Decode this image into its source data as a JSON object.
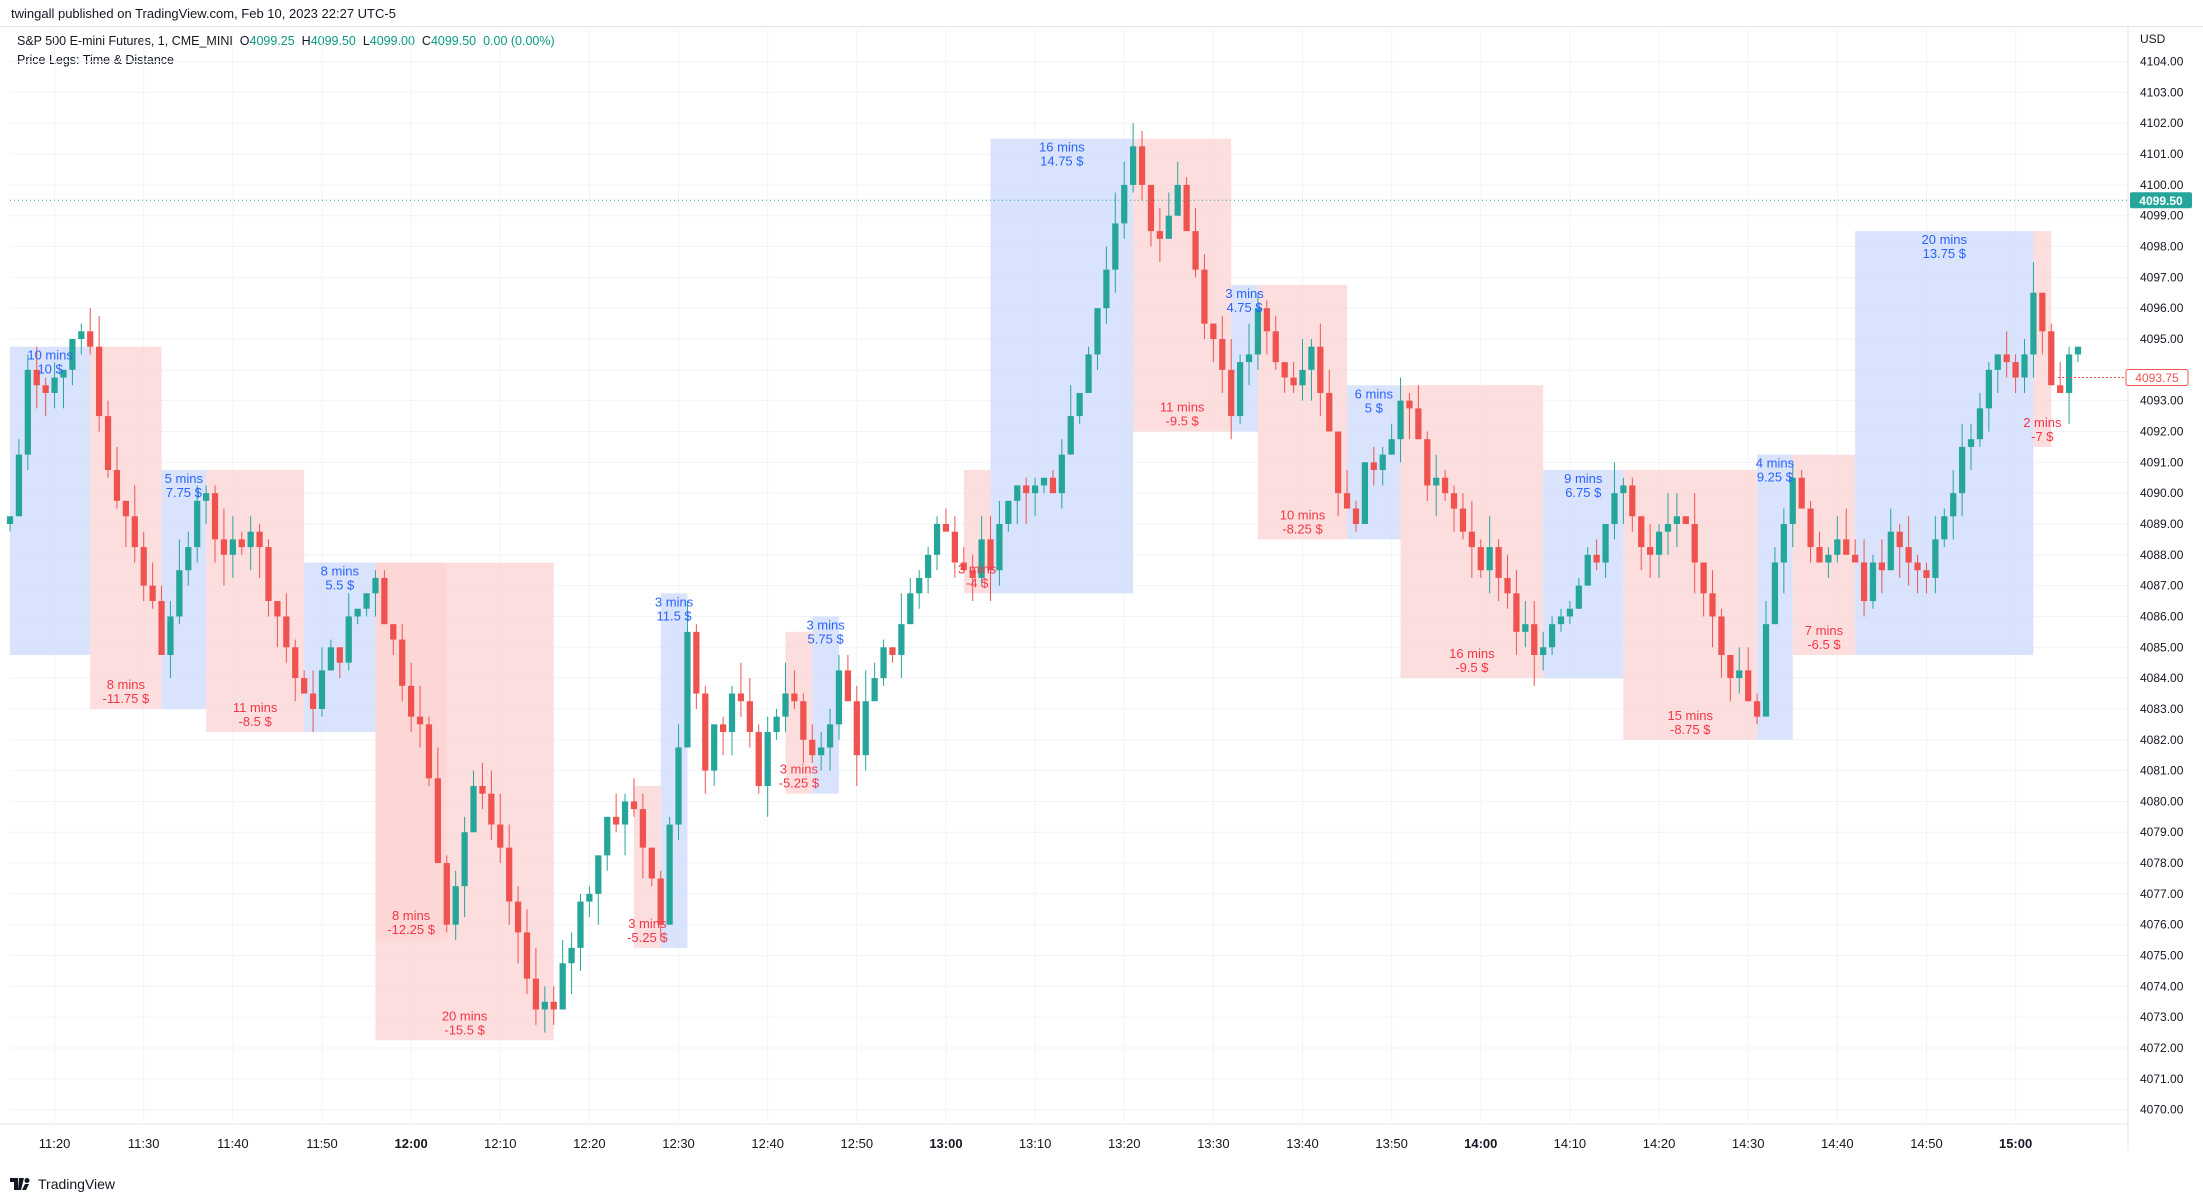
{
  "header": {
    "published": "twingall published on TradingView.com, Feb 10, 2023 22:27 UTC-5"
  },
  "legend": {
    "symbol": "S&P 500 E-mini Futures, 1, CME_MINI",
    "o_label": "O",
    "o_value": "4099.25",
    "h_label": "H",
    "h_value": "4099.50",
    "l_label": "L",
    "l_value": "4099.00",
    "c_label": "C",
    "c_value": "4099.50",
    "change": "0.00 (0.00%)",
    "indicator": "Price Legs: Time & Distance"
  },
  "currency": "USD",
  "footer": {
    "brand": "TradingView"
  },
  "colors": {
    "up": "#26a69a",
    "down": "#ef5350",
    "up_box": "#cfdcfb",
    "down_box": "#fcd6d6",
    "up_text": "#2962ff",
    "down_text": "#f23645",
    "grid": "#f0f3fa",
    "axis_text": "#131722"
  },
  "chart_data": {
    "type": "candlestick",
    "ylim": [
      4069.6,
      4104.7
    ],
    "y_ticks": [
      "4070.00",
      "4071.00",
      "4072.00",
      "4073.00",
      "4074.00",
      "4075.00",
      "4076.00",
      "4077.00",
      "4078.00",
      "4079.00",
      "4080.00",
      "4081.00",
      "4082.00",
      "4083.00",
      "4084.00",
      "4085.00",
      "4086.00",
      "4087.00",
      "4088.00",
      "4089.00",
      "4090.00",
      "4091.00",
      "4092.00",
      "4093.00",
      "4094.00",
      "4095.00",
      "4096.00",
      "4097.00",
      "4098.00",
      "4099.00",
      "4100.00",
      "4101.00",
      "4102.00",
      "4103.00",
      "4104.00"
    ],
    "x_start": "11:15",
    "x_end": "15:07",
    "x_ticks": [
      {
        "time": "11:20",
        "label": "11:20",
        "bold": false
      },
      {
        "time": "11:30",
        "label": "11:30",
        "bold": false
      },
      {
        "time": "11:40",
        "label": "11:40",
        "bold": false
      },
      {
        "time": "11:50",
        "label": "11:50",
        "bold": false
      },
      {
        "time": "12:00",
        "label": "12:00",
        "bold": true
      },
      {
        "time": "12:10",
        "label": "12:10",
        "bold": false
      },
      {
        "time": "12:20",
        "label": "12:20",
        "bold": false
      },
      {
        "time": "12:30",
        "label": "12:30",
        "bold": false
      },
      {
        "time": "12:40",
        "label": "12:40",
        "bold": false
      },
      {
        "time": "12:50",
        "label": "12:50",
        "bold": false
      },
      {
        "time": "13:00",
        "label": "13:00",
        "bold": true
      },
      {
        "time": "13:10",
        "label": "13:10",
        "bold": false
      },
      {
        "time": "13:20",
        "label": "13:20",
        "bold": false
      },
      {
        "time": "13:30",
        "label": "13:30",
        "bold": false
      },
      {
        "time": "13:40",
        "label": "13:40",
        "bold": false
      },
      {
        "time": "13:50",
        "label": "13:50",
        "bold": false
      },
      {
        "time": "14:00",
        "label": "14:00",
        "bold": true
      },
      {
        "time": "14:10",
        "label": "14:10",
        "bold": false
      },
      {
        "time": "14:20",
        "label": "14:20",
        "bold": false
      },
      {
        "time": "14:30",
        "label": "14:30",
        "bold": false
      },
      {
        "time": "14:40",
        "label": "14:40",
        "bold": false
      },
      {
        "time": "14:50",
        "label": "14:50",
        "bold": false
      },
      {
        "time": "15:00",
        "label": "15:00",
        "bold": true
      }
    ],
    "current_price": "4099.50",
    "current_price_level": 4099.5,
    "last_close": "4093.75",
    "last_close_level": 4093.75,
    "legs": [
      {
        "dir": "up",
        "start": "11:15",
        "end": "11:24",
        "low": 4084.75,
        "high": 4094.75,
        "mins": "10 mins",
        "dist": "10 $",
        "label_at": "top"
      },
      {
        "dir": "down",
        "start": "11:24",
        "end": "11:32",
        "low": 4083.0,
        "high": 4094.75,
        "mins": "8 mins",
        "dist": "-11.75 $",
        "label_at": "bottom"
      },
      {
        "dir": "up",
        "start": "11:32",
        "end": "11:37",
        "low": 4083.0,
        "high": 4090.75,
        "mins": "5 mins",
        "dist": "7.75 $",
        "label_at": "top"
      },
      {
        "dir": "down",
        "start": "11:37",
        "end": "11:48",
        "low": 4082.25,
        "high": 4090.75,
        "mins": "11 mins",
        "dist": "-8.5 $",
        "label_at": "bottom"
      },
      {
        "dir": "up",
        "start": "11:48",
        "end": "11:56",
        "low": 4082.25,
        "high": 4087.75,
        "mins": "8 mins",
        "dist": "5.5 $",
        "label_at": "top"
      },
      {
        "dir": "down",
        "start": "11:56",
        "end": "12:04",
        "low": 4075.5,
        "high": 4087.75,
        "mins": "8 mins",
        "dist": "-12.25 $",
        "label_at": "bottom",
        "strong": true
      },
      {
        "dir": "down",
        "start": "11:56",
        "end": "12:16",
        "low": 4072.25,
        "high": 4087.75,
        "mins": "20 mins",
        "dist": "-15.5 $",
        "label_at": "bottom"
      },
      {
        "dir": "up",
        "start": "12:28",
        "end": "12:31",
        "low": 4075.25,
        "high": 4086.75,
        "mins": "3 mins",
        "dist": "11.5 $",
        "label_at": "top"
      },
      {
        "dir": "down",
        "start": "12:25",
        "end": "12:28",
        "low": 4075.25,
        "high": 4080.5,
        "mins": "3 mins",
        "dist": "-5.25 $",
        "label_at": "bottom"
      },
      {
        "dir": "up",
        "start": "12:45",
        "end": "12:48",
        "low": 4080.25,
        "high": 4086.0,
        "mins": "3 mins",
        "dist": "5.75 $",
        "label_at": "top"
      },
      {
        "dir": "down",
        "start": "12:42",
        "end": "12:45",
        "low": 4080.25,
        "high": 4085.5,
        "mins": "3 mins",
        "dist": "-5.25 $",
        "label_at": "bottom"
      },
      {
        "dir": "down",
        "start": "13:02",
        "end": "13:05",
        "low": 4086.75,
        "high": 4090.75,
        "mins": "3 mins",
        "dist": "-4 $",
        "label_at": "bottom"
      },
      {
        "dir": "up",
        "start": "13:05",
        "end": "13:21",
        "low": 4086.75,
        "high": 4101.5,
        "mins": "16 mins",
        "dist": "14.75 $",
        "label_at": "top"
      },
      {
        "dir": "down",
        "start": "13:21",
        "end": "13:32",
        "low": 4092.0,
        "high": 4101.5,
        "mins": "11 mins",
        "dist": "-9.5 $",
        "label_at": "bottom"
      },
      {
        "dir": "up",
        "start": "13:32",
        "end": "13:35",
        "low": 4092.0,
        "high": 4096.75,
        "mins": "3 mins",
        "dist": "4.75 $",
        "label_at": "top"
      },
      {
        "dir": "down",
        "start": "13:35",
        "end": "13:45",
        "low": 4088.5,
        "high": 4096.75,
        "mins": "10 mins",
        "dist": "-8.25 $",
        "label_at": "bottom"
      },
      {
        "dir": "up",
        "start": "13:45",
        "end": "13:51",
        "low": 4088.5,
        "high": 4093.5,
        "mins": "6 mins",
        "dist": "5 $",
        "label_at": "top"
      },
      {
        "dir": "down",
        "start": "13:51",
        "end": "14:07",
        "low": 4084.0,
        "high": 4093.5,
        "mins": "16 mins",
        "dist": "-9.5 $",
        "label_at": "bottom"
      },
      {
        "dir": "up",
        "start": "14:07",
        "end": "14:16",
        "low": 4084.0,
        "high": 4090.75,
        "mins": "9 mins",
        "dist": "6.75 $",
        "label_at": "top"
      },
      {
        "dir": "down",
        "start": "14:16",
        "end": "14:31",
        "low": 4082.0,
        "high": 4090.75,
        "mins": "15 mins",
        "dist": "-8.75 $",
        "label_at": "bottom"
      },
      {
        "dir": "up",
        "start": "14:31",
        "end": "14:35",
        "low": 4082.0,
        "high": 4091.25,
        "mins": "4 mins",
        "dist": "9.25 $",
        "label_at": "top"
      },
      {
        "dir": "down",
        "start": "14:35",
        "end": "14:42",
        "low": 4084.75,
        "high": 4091.25,
        "mins": "7 mins",
        "dist": "-6.5 $",
        "label_at": "bottom"
      },
      {
        "dir": "up",
        "start": "14:42",
        "end": "15:02",
        "low": 4084.75,
        "high": 4098.5,
        "mins": "20 mins",
        "dist": "13.75 $",
        "label_at": "top"
      },
      {
        "dir": "down",
        "start": "15:02",
        "end": "15:04",
        "low": 4091.5,
        "high": 4098.5,
        "mins": "2 mins",
        "dist": "-7 $",
        "label_at": "bottom"
      }
    ],
    "pivots": [
      {
        "t": "11:15",
        "p": 4089.0
      },
      {
        "t": "11:17",
        "p": 4093.5
      },
      {
        "t": "11:22",
        "p": 4094.5
      },
      {
        "t": "11:24",
        "p": 4094.75
      },
      {
        "t": "11:26",
        "p": 4091.0
      },
      {
        "t": "11:29",
        "p": 4088.5
      },
      {
        "t": "11:32",
        "p": 4085.0
      },
      {
        "t": "11:33",
        "p": 4086.5
      },
      {
        "t": "11:37",
        "p": 4090.25
      },
      {
        "t": "11:39",
        "p": 4087.5
      },
      {
        "t": "11:42",
        "p": 4089.0
      },
      {
        "t": "11:45",
        "p": 4086.0
      },
      {
        "t": "11:48",
        "p": 4083.0
      },
      {
        "t": "11:52",
        "p": 4085.0
      },
      {
        "t": "11:56",
        "p": 4087.5
      },
      {
        "t": "11:58",
        "p": 4085.0
      },
      {
        "t": "12:01",
        "p": 4082.5
      },
      {
        "t": "12:04",
        "p": 4076.5
      },
      {
        "t": "12:07",
        "p": 4080.5
      },
      {
        "t": "12:10",
        "p": 4078.0
      },
      {
        "t": "12:13",
        "p": 4074.0
      },
      {
        "t": "12:16",
        "p": 4073.0
      },
      {
        "t": "12:19",
        "p": 4076.5
      },
      {
        "t": "12:22",
        "p": 4079.5
      },
      {
        "t": "12:25",
        "p": 4080.0
      },
      {
        "t": "12:28",
        "p": 4076.0
      },
      {
        "t": "12:31",
        "p": 4085.5
      },
      {
        "t": "12:33",
        "p": 4081.5
      },
      {
        "t": "12:36",
        "p": 4083.5
      },
      {
        "t": "12:39",
        "p": 4081.0
      },
      {
        "t": "12:42",
        "p": 4084.0
      },
      {
        "t": "12:45",
        "p": 4081.0
      },
      {
        "t": "12:48",
        "p": 4084.0
      },
      {
        "t": "12:50",
        "p": 4082.0
      },
      {
        "t": "12:53",
        "p": 4084.5
      },
      {
        "t": "12:56",
        "p": 4086.5
      },
      {
        "t": "12:59",
        "p": 4089.0
      },
      {
        "t": "13:02",
        "p": 4088.0
      },
      {
        "t": "13:05",
        "p": 4088.0
      },
      {
        "t": "13:08",
        "p": 4090.0
      },
      {
        "t": "13:12",
        "p": 4090.5
      },
      {
        "t": "13:15",
        "p": 4093.5
      },
      {
        "t": "13:18",
        "p": 4097.5
      },
      {
        "t": "13:21",
        "p": 4101.5
      },
      {
        "t": "13:23",
        "p": 4098.0
      },
      {
        "t": "13:26",
        "p": 4100.0
      },
      {
        "t": "13:29",
        "p": 4096.0
      },
      {
        "t": "13:32",
        "p": 4093.0
      },
      {
        "t": "13:35",
        "p": 4095.5
      },
      {
        "t": "13:38",
        "p": 4093.5
      },
      {
        "t": "13:41",
        "p": 4095.0
      },
      {
        "t": "13:45",
        "p": 4089.0
      },
      {
        "t": "13:48",
        "p": 4091.0
      },
      {
        "t": "13:51",
        "p": 4093.0
      },
      {
        "t": "13:55",
        "p": 4090.0
      },
      {
        "t": "13:59",
        "p": 4088.5
      },
      {
        "t": "14:02",
        "p": 4087.5
      },
      {
        "t": "14:05",
        "p": 4085.0
      },
      {
        "t": "14:07",
        "p": 4085.5
      },
      {
        "t": "14:11",
        "p": 4087.0
      },
      {
        "t": "14:14",
        "p": 4089.0
      },
      {
        "t": "14:16",
        "p": 4090.0
      },
      {
        "t": "14:19",
        "p": 4088.0
      },
      {
        "t": "14:22",
        "p": 4089.0
      },
      {
        "t": "14:25",
        "p": 4087.0
      },
      {
        "t": "14:28",
        "p": 4084.5
      },
      {
        "t": "14:31",
        "p": 4082.5
      },
      {
        "t": "14:33",
        "p": 4088.0
      },
      {
        "t": "14:35",
        "p": 4090.5
      },
      {
        "t": "14:38",
        "p": 4088.0
      },
      {
        "t": "14:41",
        "p": 4088.5
      },
      {
        "t": "14:43",
        "p": 4086.5
      },
      {
        "t": "14:46",
        "p": 4088.5
      },
      {
        "t": "14:49",
        "p": 4087.0
      },
      {
        "t": "14:52",
        "p": 4089.5
      },
      {
        "t": "14:55",
        "p": 4092.0
      },
      {
        "t": "14:58",
        "p": 4094.5
      },
      {
        "t": "15:00",
        "p": 4093.5
      },
      {
        "t": "15:02",
        "p": 4096.5
      },
      {
        "t": "15:04",
        "p": 4093.0
      },
      {
        "t": "15:06",
        "p": 4094.5
      }
    ]
  }
}
